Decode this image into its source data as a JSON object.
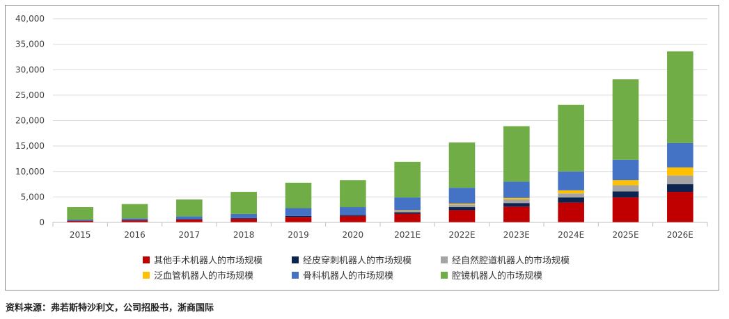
{
  "chart_data": {
    "type": "bar",
    "stacked": true,
    "categories": [
      "2015",
      "2016",
      "2017",
      "2018",
      "2019",
      "2020",
      "2021E",
      "2022E",
      "2023E",
      "2024E",
      "2025E",
      "2026E"
    ],
    "yticks": [
      "0",
      "5,000",
      "10,000",
      "15,000",
      "20,000",
      "25,000",
      "30,000",
      "35,000",
      "40,000"
    ],
    "ylim": [
      0,
      40000
    ],
    "grid": true,
    "legend_position": "bottom",
    "series": [
      {
        "name": "其他手术机器人的市场规模",
        "color": "#c00000",
        "values": [
          300,
          400,
          550,
          700,
          1050,
          1250,
          1700,
          2400,
          3100,
          3900,
          4900,
          6000
        ]
      },
      {
        "name": "经皮穿刺机器人的市场规模",
        "color": "#0c2450",
        "values": [
          50,
          70,
          100,
          150,
          200,
          200,
          300,
          600,
          700,
          1000,
          1200,
          1500
        ]
      },
      {
        "name": "经自然腔道机器人的市场规模",
        "color": "#a5a5a5",
        "values": [
          0,
          0,
          0,
          0,
          0,
          0,
          300,
          500,
          700,
          800,
          1200,
          1700
        ]
      },
      {
        "name": "泛血管机器人的市场规模",
        "color": "#ffc000",
        "values": [
          0,
          0,
          0,
          0,
          0,
          0,
          100,
          200,
          300,
          600,
          1000,
          1600
        ]
      },
      {
        "name": "骨科机器人的市场规模",
        "color": "#4472c4",
        "values": [
          200,
          300,
          550,
          800,
          1550,
          1550,
          2500,
          3100,
          3200,
          3700,
          4000,
          4800
        ]
      },
      {
        "name": "腔镜机器人的市场规模",
        "color": "#70ad47",
        "values": [
          2450,
          2830,
          3300,
          4350,
          5000,
          5300,
          7000,
          8900,
          10900,
          13100,
          15800,
          18000
        ]
      }
    ]
  },
  "source": "资料来源：弗若斯特沙利文，公司招股书，浙商国际"
}
